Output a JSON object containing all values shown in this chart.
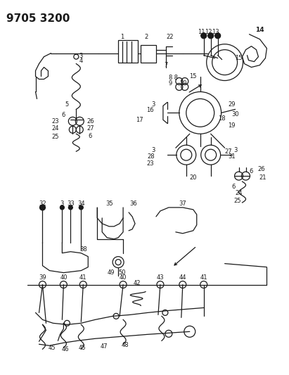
{
  "title": "9705 3200",
  "background_color": "#ffffff",
  "line_color": "#1a1a1a",
  "title_fontsize": 11,
  "title_fontweight": "bold",
  "fig_width": 4.11,
  "fig_height": 5.33,
  "dpi": 100
}
